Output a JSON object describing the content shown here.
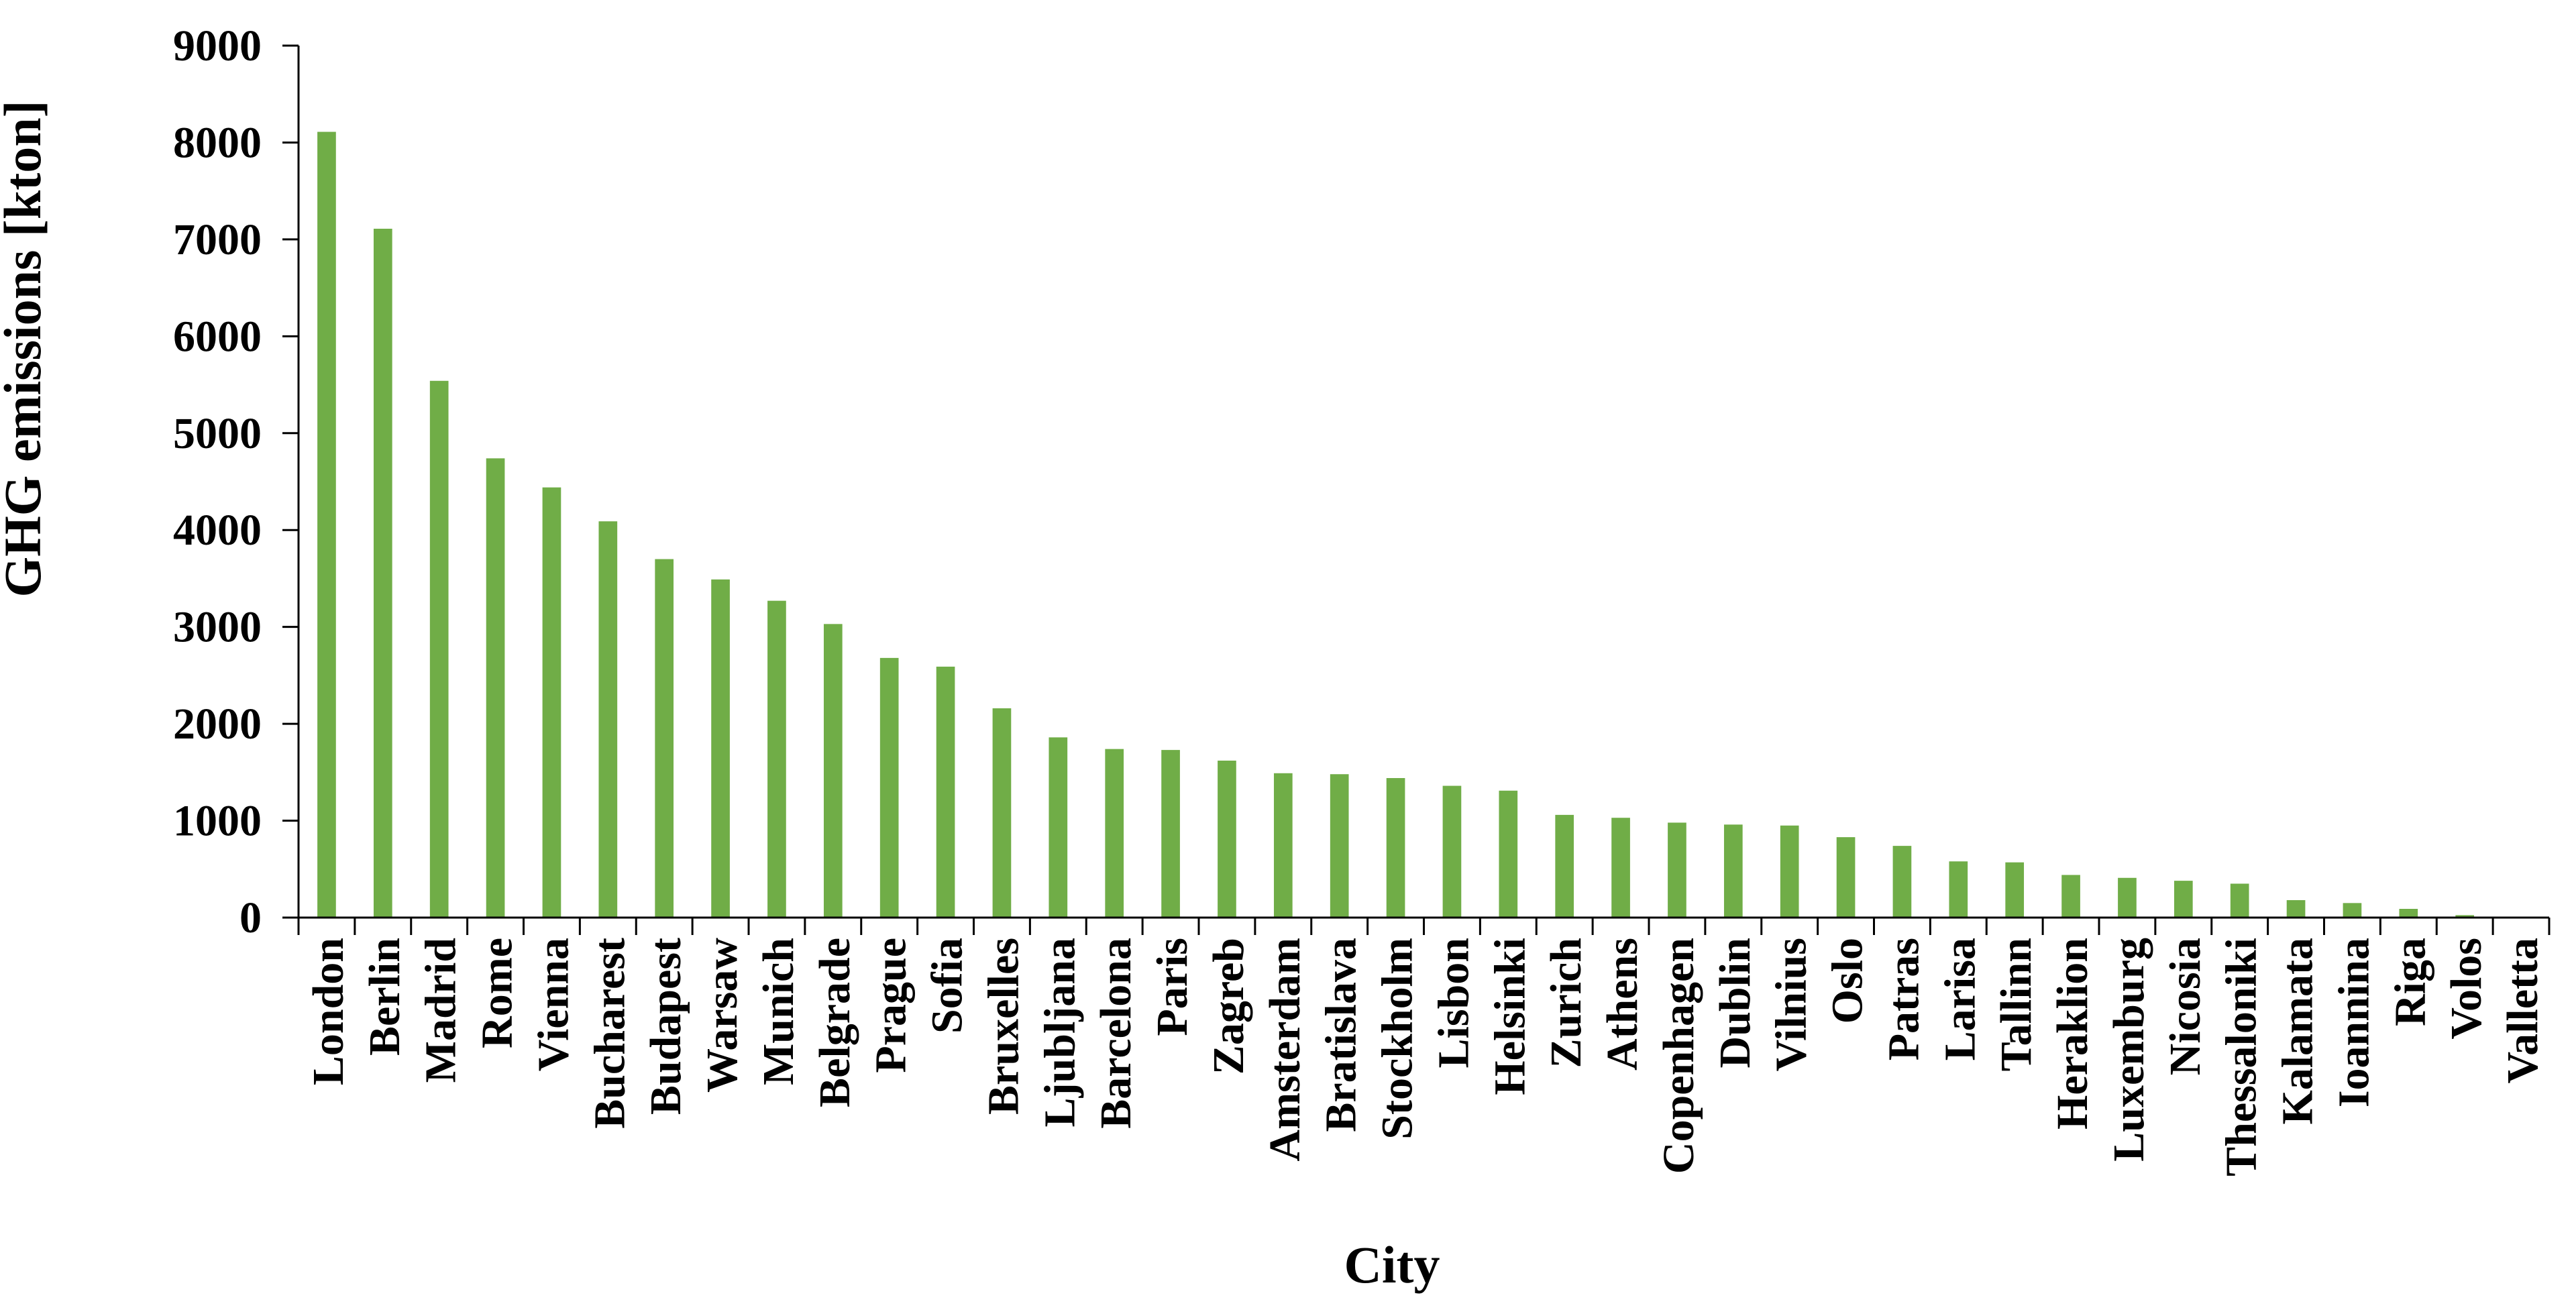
{
  "chart_data": {
    "type": "bar",
    "title": "",
    "xlabel": "City",
    "ylabel": "GHG emissions [kton]",
    "ylim": [
      0,
      9000
    ],
    "yticks": [
      "0",
      "1000",
      "2000",
      "3000",
      "4000",
      "5000",
      "6000",
      "7000",
      "8000",
      "9000"
    ],
    "grid": false,
    "legend": "none",
    "bar_color": "#70AD47",
    "axis_color": "#000000",
    "categories": [
      "London",
      "Berlin",
      "Madrid",
      "Rome",
      "Vienna",
      "Bucharest",
      "Budapest",
      "Warsaw",
      "Munich",
      "Belgrade",
      "Prague",
      "Sofia",
      "Bruxelles",
      "Ljubljana",
      "Barcelona",
      "Paris",
      "Zagreb",
      "Amsterdam",
      "Bratislava",
      "Stockholm",
      "Lisbon",
      "Helsinki",
      "Zurich",
      "Athens",
      "Copenhagen",
      "Dublin",
      "Vilnius",
      "Oslo",
      "Patras",
      "Larisa",
      "Tallinn",
      "Heraklion",
      "Luxemburg",
      "Nicosia",
      "Thessaloniki",
      "Kalamata",
      "Ioannina",
      "Riga",
      "Volos",
      "Valletta"
    ],
    "values": [
      8110,
      7110,
      5540,
      4740,
      4440,
      4090,
      3700,
      3490,
      3270,
      3030,
      2680,
      2590,
      2160,
      1860,
      1740,
      1730,
      1620,
      1490,
      1480,
      1440,
      1360,
      1310,
      1060,
      1030,
      980,
      960,
      950,
      830,
      740,
      580,
      570,
      440,
      410,
      380,
      350,
      180,
      150,
      90,
      25,
      0
    ]
  }
}
